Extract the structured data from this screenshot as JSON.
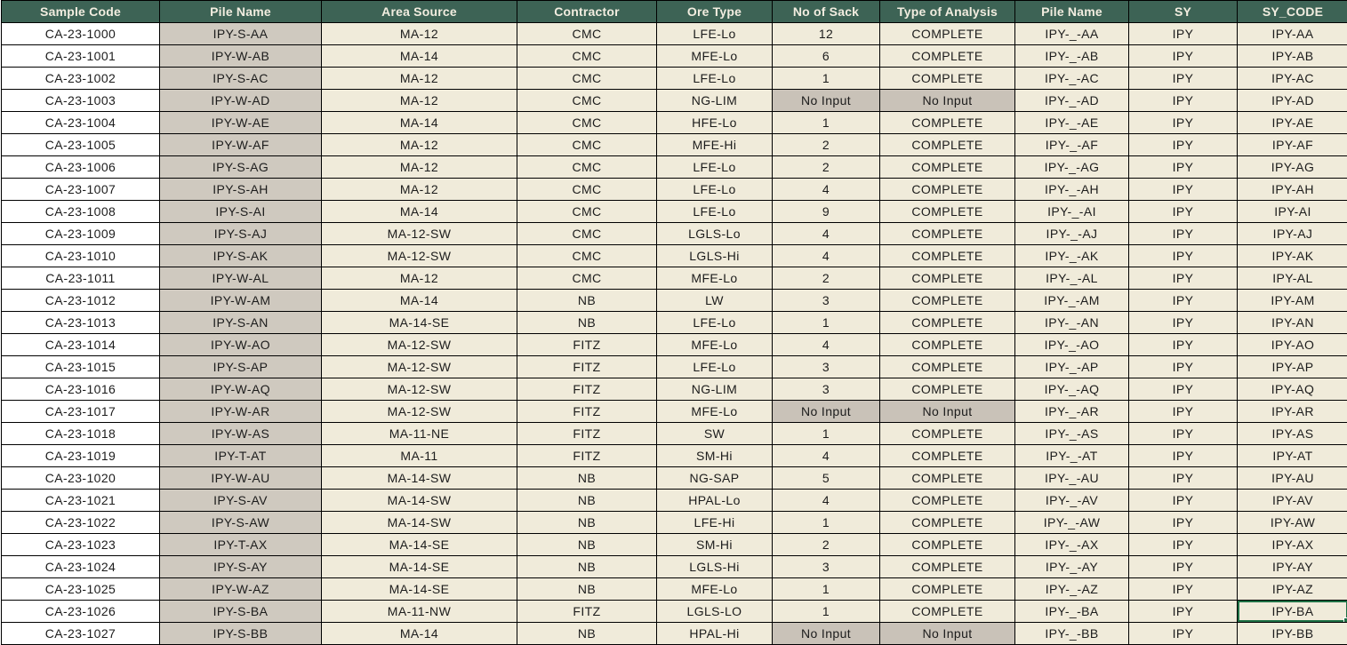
{
  "colors": {
    "header_bg": "#3d6355",
    "header_text": "#f2ede0",
    "cream": "#f0ebda",
    "pile": "#cfc9bf",
    "noinput": "#c9c2b8",
    "sel": "#1e7145"
  },
  "table": {
    "columns": [
      "Sample Code",
      "Pile Name",
      "Area Source",
      "Contractor",
      "Ore Type",
      "No of Sack",
      "Type of Analysis",
      "Pile Name",
      "SY",
      "SY_CODE"
    ],
    "no_input_label": "No Input",
    "selected_cell": {
      "row_index": 26,
      "col_index": 9
    },
    "rows": [
      [
        "CA-23-1000",
        "IPY-S-AA",
        "MA-12",
        "CMC",
        "LFE-Lo",
        "12",
        "COMPLETE",
        "IPY-_-AA",
        "IPY",
        "IPY-AA"
      ],
      [
        "CA-23-1001",
        "IPY-W-AB",
        "MA-14",
        "CMC",
        "MFE-Lo",
        "6",
        "COMPLETE",
        "IPY-_-AB",
        "IPY",
        "IPY-AB"
      ],
      [
        "CA-23-1002",
        "IPY-S-AC",
        "MA-12",
        "CMC",
        "LFE-Lo",
        "1",
        "COMPLETE",
        "IPY-_-AC",
        "IPY",
        "IPY-AC"
      ],
      [
        "CA-23-1003",
        "IPY-W-AD",
        "MA-12",
        "CMC",
        "NG-LIM",
        "No Input",
        "No Input",
        "IPY-_-AD",
        "IPY",
        "IPY-AD"
      ],
      [
        "CA-23-1004",
        "IPY-W-AE",
        "MA-14",
        "CMC",
        "HFE-Lo",
        "1",
        "COMPLETE",
        "IPY-_-AE",
        "IPY",
        "IPY-AE"
      ],
      [
        "CA-23-1005",
        "IPY-W-AF",
        "MA-12",
        "CMC",
        "MFE-Hi",
        "2",
        "COMPLETE",
        "IPY-_-AF",
        "IPY",
        "IPY-AF"
      ],
      [
        "CA-23-1006",
        "IPY-S-AG",
        "MA-12",
        "CMC",
        "LFE-Lo",
        "2",
        "COMPLETE",
        "IPY-_-AG",
        "IPY",
        "IPY-AG"
      ],
      [
        "CA-23-1007",
        "IPY-S-AH",
        "MA-12",
        "CMC",
        "LFE-Lo",
        "4",
        "COMPLETE",
        "IPY-_-AH",
        "IPY",
        "IPY-AH"
      ],
      [
        "CA-23-1008",
        "IPY-S-AI",
        "MA-14",
        "CMC",
        "LFE-Lo",
        "9",
        "COMPLETE",
        "IPY-_-AI",
        "IPY",
        "IPY-AI"
      ],
      [
        "CA-23-1009",
        "IPY-S-AJ",
        "MA-12-SW",
        "CMC",
        "LGLS-Lo",
        "4",
        "COMPLETE",
        "IPY-_-AJ",
        "IPY",
        "IPY-AJ"
      ],
      [
        "CA-23-1010",
        "IPY-S-AK",
        "MA-12-SW",
        "CMC",
        "LGLS-Hi",
        "4",
        "COMPLETE",
        "IPY-_-AK",
        "IPY",
        "IPY-AK"
      ],
      [
        "CA-23-1011",
        "IPY-W-AL",
        "MA-12",
        "CMC",
        "MFE-Lo",
        "2",
        "COMPLETE",
        "IPY-_-AL",
        "IPY",
        "IPY-AL"
      ],
      [
        "CA-23-1012",
        "IPY-W-AM",
        "MA-14",
        "NB",
        "LW",
        "3",
        "COMPLETE",
        "IPY-_-AM",
        "IPY",
        "IPY-AM"
      ],
      [
        "CA-23-1013",
        "IPY-S-AN",
        "MA-14-SE",
        "NB",
        "LFE-Lo",
        "1",
        "COMPLETE",
        "IPY-_-AN",
        "IPY",
        "IPY-AN"
      ],
      [
        "CA-23-1014",
        "IPY-W-AO",
        "MA-12-SW",
        "FITZ",
        "MFE-Lo",
        "4",
        "COMPLETE",
        "IPY-_-AO",
        "IPY",
        "IPY-AO"
      ],
      [
        "CA-23-1015",
        "IPY-S-AP",
        "MA-12-SW",
        "FITZ",
        "LFE-Lo",
        "3",
        "COMPLETE",
        "IPY-_-AP",
        "IPY",
        "IPY-AP"
      ],
      [
        "CA-23-1016",
        "IPY-W-AQ",
        "MA-12-SW",
        "FITZ",
        "NG-LIM",
        "3",
        "COMPLETE",
        "IPY-_-AQ",
        "IPY",
        "IPY-AQ"
      ],
      [
        "CA-23-1017",
        "IPY-W-AR",
        "MA-12-SW",
        "FITZ",
        "MFE-Lo",
        "No Input",
        "No Input",
        "IPY-_-AR",
        "IPY",
        "IPY-AR"
      ],
      [
        "CA-23-1018",
        "IPY-W-AS",
        "MA-11-NE",
        "FITZ",
        "SW",
        "1",
        "COMPLETE",
        "IPY-_-AS",
        "IPY",
        "IPY-AS"
      ],
      [
        "CA-23-1019",
        "IPY-T-AT",
        "MA-11",
        "FITZ",
        "SM-Hi",
        "4",
        "COMPLETE",
        "IPY-_-AT",
        "IPY",
        "IPY-AT"
      ],
      [
        "CA-23-1020",
        "IPY-W-AU",
        "MA-14-SW",
        "NB",
        "NG-SAP",
        "5",
        "COMPLETE",
        "IPY-_-AU",
        "IPY",
        "IPY-AU"
      ],
      [
        "CA-23-1021",
        "IPY-S-AV",
        "MA-14-SW",
        "NB",
        "HPAL-Lo",
        "4",
        "COMPLETE",
        "IPY-_-AV",
        "IPY",
        "IPY-AV"
      ],
      [
        "CA-23-1022",
        "IPY-S-AW",
        "MA-14-SW",
        "NB",
        "LFE-Hi",
        "1",
        "COMPLETE",
        "IPY-_-AW",
        "IPY",
        "IPY-AW"
      ],
      [
        "CA-23-1023",
        "IPY-T-AX",
        "MA-14-SE",
        "NB",
        "SM-Hi",
        "2",
        "COMPLETE",
        "IPY-_-AX",
        "IPY",
        "IPY-AX"
      ],
      [
        "CA-23-1024",
        "IPY-S-AY",
        "MA-14-SE",
        "NB",
        "LGLS-Hi",
        "3",
        "COMPLETE",
        "IPY-_-AY",
        "IPY",
        "IPY-AY"
      ],
      [
        "CA-23-1025",
        "IPY-W-AZ",
        "MA-14-SE",
        "NB",
        "MFE-Lo",
        "1",
        "COMPLETE",
        "IPY-_-AZ",
        "IPY",
        "IPY-AZ"
      ],
      [
        "CA-23-1026",
        "IPY-S-BA",
        "MA-11-NW",
        "FITZ",
        "LGLS-LO",
        "1",
        "COMPLETE",
        "IPY-_-BA",
        "IPY",
        "IPY-BA"
      ],
      [
        "CA-23-1027",
        "IPY-S-BB",
        "MA-14",
        "NB",
        "HPAL-Hi",
        "No Input",
        "No Input",
        "IPY-_-BB",
        "IPY",
        "IPY-BB"
      ]
    ]
  }
}
